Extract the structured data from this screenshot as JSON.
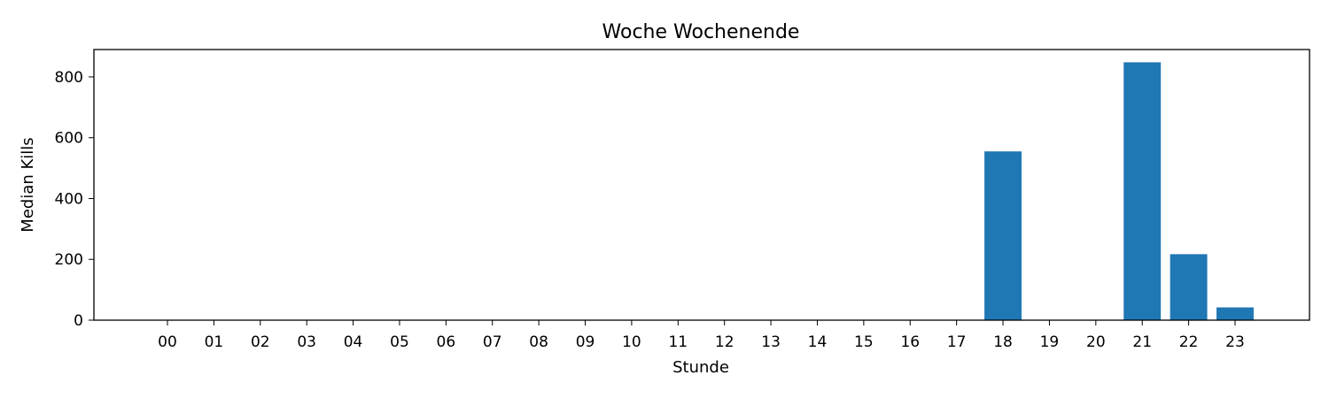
{
  "chart_data": {
    "type": "bar",
    "title": "Woche Wochenende",
    "xlabel": "Stunde",
    "ylabel": "Median Kills",
    "categories": [
      "00",
      "01",
      "02",
      "03",
      "04",
      "05",
      "06",
      "07",
      "08",
      "09",
      "10",
      "11",
      "12",
      "13",
      "14",
      "15",
      "16",
      "17",
      "18",
      "19",
      "20",
      "21",
      "22",
      "23"
    ],
    "values": [
      0,
      0,
      0,
      0,
      0,
      0,
      0,
      0,
      0,
      0,
      0,
      0,
      0,
      0,
      0,
      0,
      0,
      0,
      555,
      0,
      0,
      848,
      217,
      42
    ],
    "ylim": [
      0,
      890
    ],
    "yticks": [
      0,
      200,
      400,
      600,
      800
    ],
    "grid": false,
    "bar_color": "#1f77b4"
  }
}
